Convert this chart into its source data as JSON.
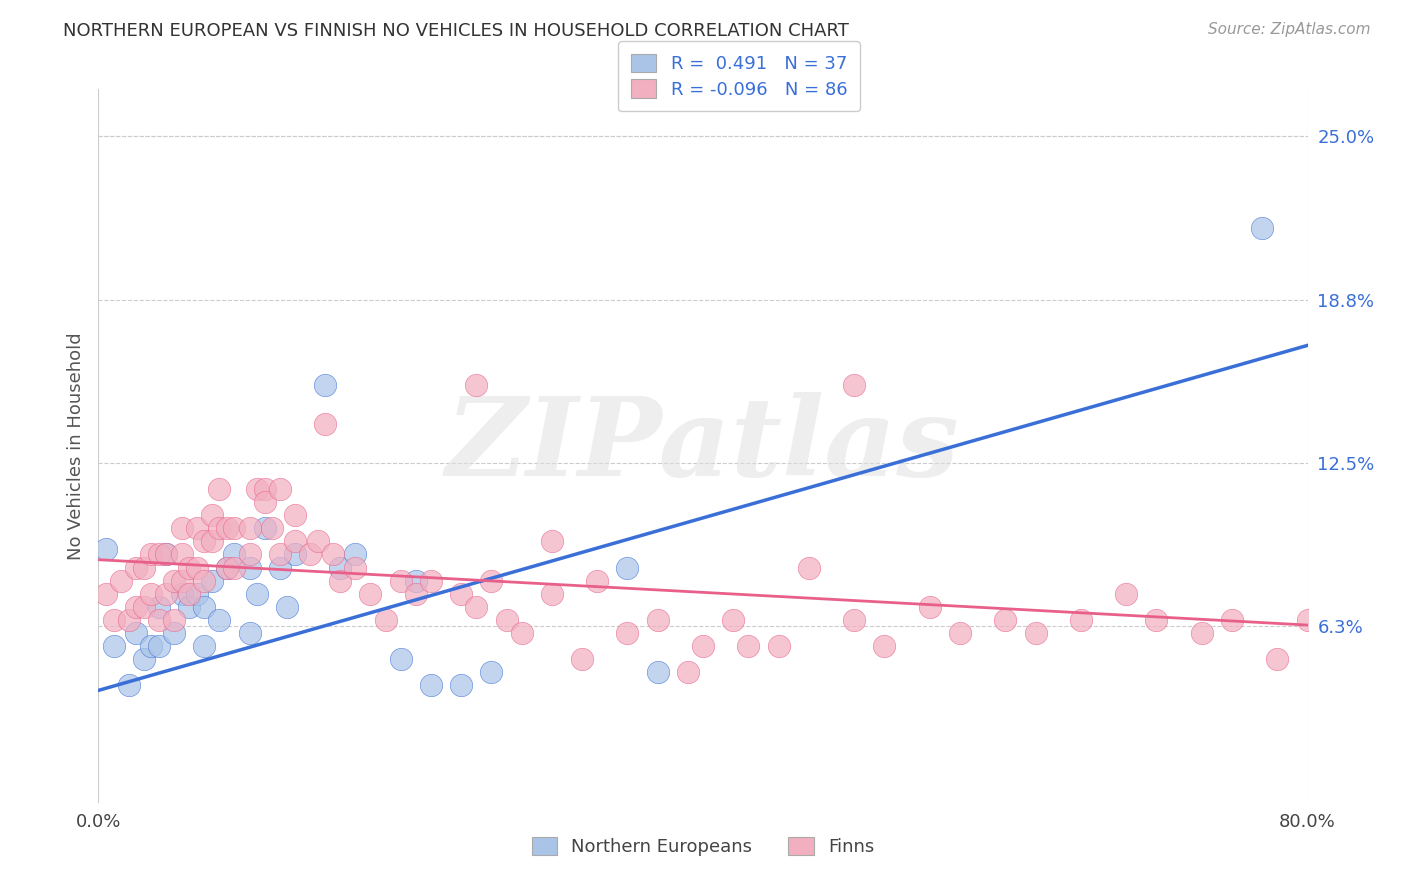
{
  "title": "NORTHERN EUROPEAN VS FINNISH NO VEHICLES IN HOUSEHOLD CORRELATION CHART",
  "source": "Source: ZipAtlas.com",
  "ylabel": "No Vehicles in Household",
  "watermark": "ZIPatlas",
  "blue_R": 0.491,
  "blue_N": 37,
  "pink_R": -0.096,
  "pink_N": 86,
  "blue_color": "#aac4e8",
  "pink_color": "#f2afc0",
  "blue_line_color": "#3a6fd8",
  "pink_line_color": "#e8608a",
  "xlim": [
    0.0,
    0.8
  ],
  "ylim": [
    -0.005,
    0.268
  ],
  "plot_ylim": [
    0.0,
    0.265
  ],
  "xticks": [
    0.0,
    0.2,
    0.4,
    0.6,
    0.8
  ],
  "xtick_labels": [
    "0.0%",
    "",
    "",
    "",
    "80.0%"
  ],
  "ytick_positions": [
    0.0625,
    0.125,
    0.1875,
    0.25
  ],
  "ytick_labels": [
    "6.3%",
    "12.5%",
    "18.8%",
    "25.0%"
  ],
  "background_color": "#ffffff",
  "grid_color": "#cccccc",
  "blue_scatter_x": [
    0.005,
    0.01,
    0.02,
    0.025,
    0.03,
    0.035,
    0.04,
    0.04,
    0.045,
    0.05,
    0.055,
    0.06,
    0.065,
    0.07,
    0.07,
    0.075,
    0.08,
    0.085,
    0.09,
    0.1,
    0.1,
    0.105,
    0.11,
    0.12,
    0.125,
    0.13,
    0.15,
    0.16,
    0.17,
    0.2,
    0.21,
    0.22,
    0.24,
    0.26,
    0.35,
    0.37,
    0.77
  ],
  "blue_scatter_y": [
    0.092,
    0.055,
    0.04,
    0.06,
    0.05,
    0.055,
    0.07,
    0.055,
    0.09,
    0.06,
    0.075,
    0.07,
    0.075,
    0.055,
    0.07,
    0.08,
    0.065,
    0.085,
    0.09,
    0.085,
    0.06,
    0.075,
    0.1,
    0.085,
    0.07,
    0.09,
    0.155,
    0.085,
    0.09,
    0.05,
    0.08,
    0.04,
    0.04,
    0.045,
    0.085,
    0.045,
    0.215
  ],
  "pink_scatter_x": [
    0.005,
    0.01,
    0.015,
    0.02,
    0.025,
    0.025,
    0.03,
    0.03,
    0.035,
    0.035,
    0.04,
    0.04,
    0.045,
    0.045,
    0.05,
    0.05,
    0.055,
    0.055,
    0.055,
    0.06,
    0.06,
    0.065,
    0.065,
    0.07,
    0.07,
    0.075,
    0.075,
    0.08,
    0.08,
    0.085,
    0.085,
    0.09,
    0.09,
    0.1,
    0.1,
    0.105,
    0.11,
    0.11,
    0.115,
    0.12,
    0.12,
    0.13,
    0.13,
    0.14,
    0.145,
    0.15,
    0.155,
    0.16,
    0.17,
    0.18,
    0.19,
    0.2,
    0.21,
    0.22,
    0.24,
    0.25,
    0.26,
    0.27,
    0.28,
    0.3,
    0.32,
    0.33,
    0.35,
    0.37,
    0.39,
    0.4,
    0.42,
    0.43,
    0.45,
    0.47,
    0.5,
    0.52,
    0.55,
    0.57,
    0.6,
    0.62,
    0.65,
    0.68,
    0.7,
    0.73,
    0.75,
    0.78,
    0.8,
    0.5,
    0.3,
    0.25
  ],
  "pink_scatter_y": [
    0.075,
    0.065,
    0.08,
    0.065,
    0.07,
    0.085,
    0.07,
    0.085,
    0.075,
    0.09,
    0.065,
    0.09,
    0.075,
    0.09,
    0.065,
    0.08,
    0.08,
    0.09,
    0.1,
    0.075,
    0.085,
    0.085,
    0.1,
    0.08,
    0.095,
    0.095,
    0.105,
    0.1,
    0.115,
    0.085,
    0.1,
    0.085,
    0.1,
    0.1,
    0.09,
    0.115,
    0.115,
    0.11,
    0.1,
    0.115,
    0.09,
    0.095,
    0.105,
    0.09,
    0.095,
    0.14,
    0.09,
    0.08,
    0.085,
    0.075,
    0.065,
    0.08,
    0.075,
    0.08,
    0.075,
    0.07,
    0.08,
    0.065,
    0.06,
    0.075,
    0.05,
    0.08,
    0.06,
    0.065,
    0.045,
    0.055,
    0.065,
    0.055,
    0.055,
    0.085,
    0.065,
    0.055,
    0.07,
    0.06,
    0.065,
    0.06,
    0.065,
    0.075,
    0.065,
    0.06,
    0.065,
    0.05,
    0.065,
    0.155,
    0.095,
    0.155
  ],
  "blue_line_y_start": 0.038,
  "blue_line_y_end": 0.17,
  "pink_line_y_start": 0.088,
  "pink_line_y_end": 0.063,
  "legend_blue_label": "Northern Europeans",
  "legend_pink_label": "Finns"
}
